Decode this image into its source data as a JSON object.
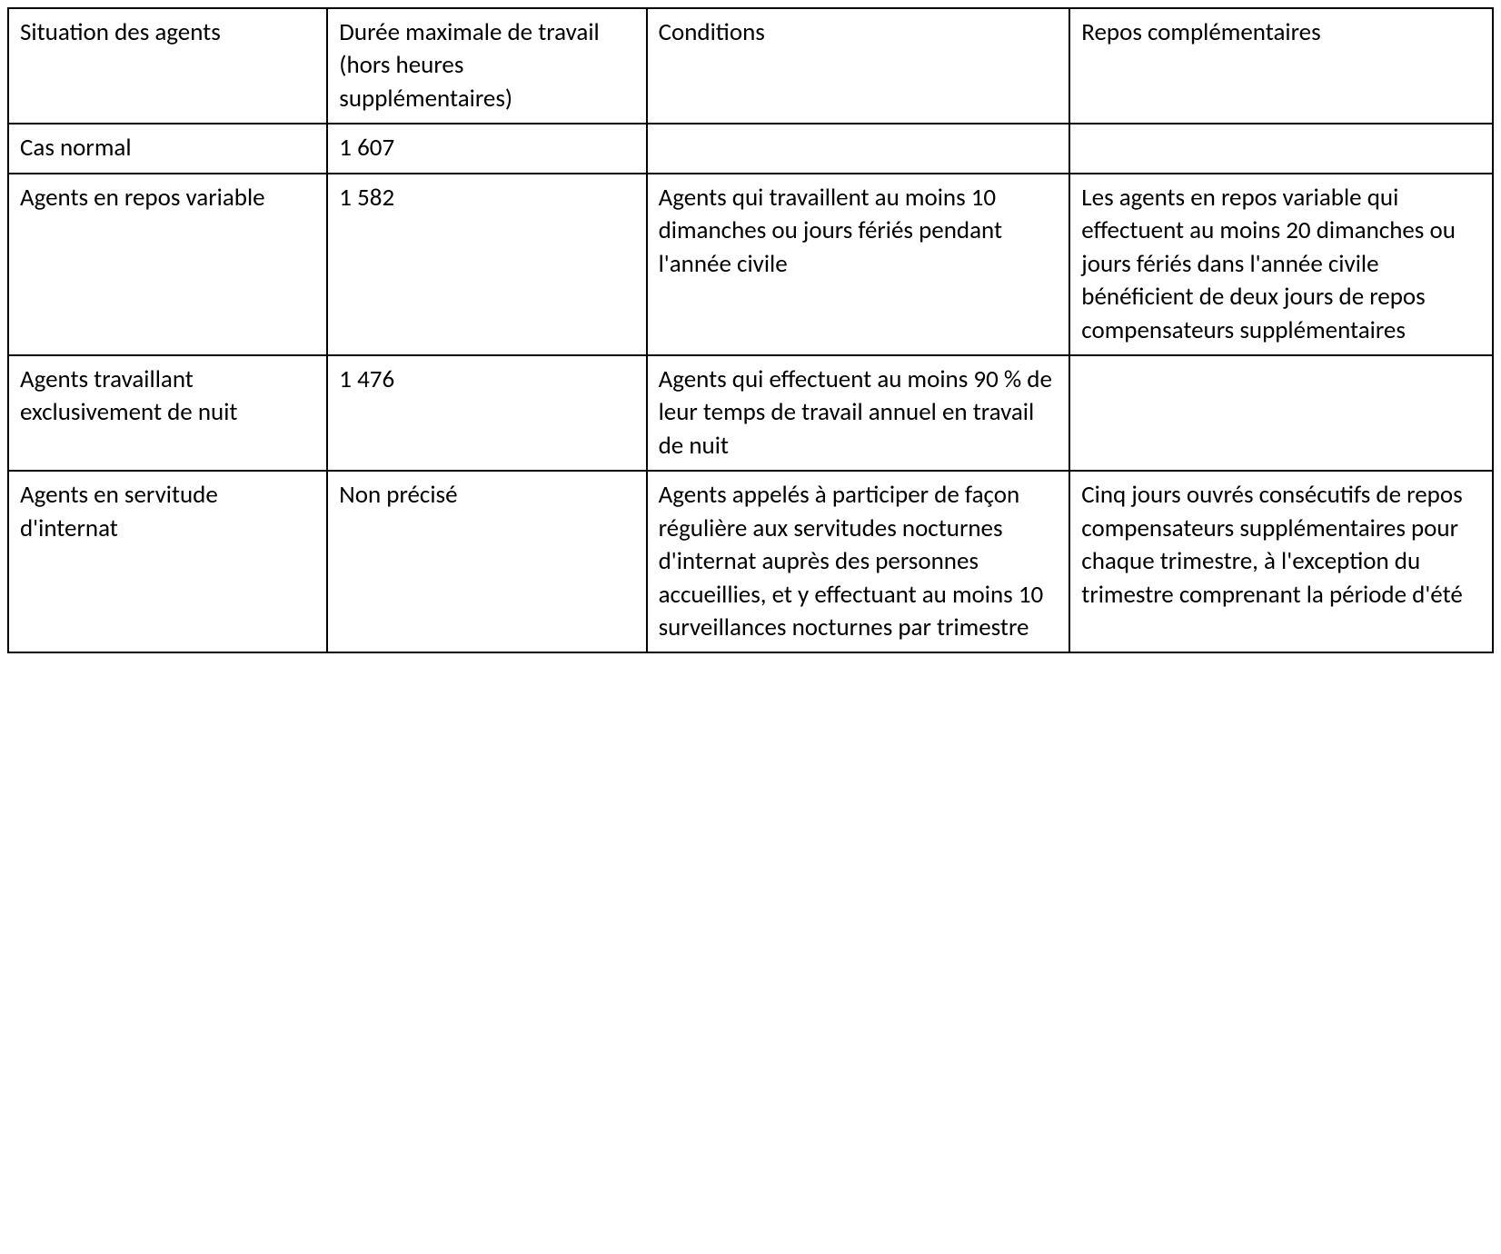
{
  "table": {
    "type": "table",
    "border_color": "#000000",
    "background_color": "#ffffff",
    "text_color": "#000000",
    "font_size_pt": 20,
    "col_widths_pct": [
      21.5,
      21.5,
      28.5,
      28.5
    ],
    "columns": [
      "Situation des agents",
      "Durée maximale de travail (hors heures supplémentaires)",
      "Conditions",
      "Repos complémentaires"
    ],
    "rows": [
      {
        "situation": "Cas normal",
        "duree": "1 607",
        "conditions": "",
        "repos": ""
      },
      {
        "situation": "Agents en repos variable",
        "duree": "1 582",
        "conditions": "Agents qui travaillent au moins 10 dimanches ou jours fériés pendant l'année civile",
        "repos": "Les agents en repos variable qui effectuent au moins 20 dimanches ou jours fériés dans l'année civile bénéficient de deux jours de repos compensateurs supplémentaires"
      },
      {
        "situation": "Agents travaillant exclusivement de nuit",
        "duree": "1 476",
        "conditions": "Agents qui effectuent au moins 90 % de leur temps de travail annuel en travail de nuit",
        "repos": ""
      },
      {
        "situation": "Agents en servitude d'internat",
        "duree": "Non précisé",
        "conditions": "Agents appelés à participer de façon régulière aux servitudes nocturnes d'internat auprès des personnes accueillies, et y effectuant au moins 10 surveillances nocturnes par trimestre",
        "repos": "Cinq jours ouvrés consécutifs de repos compensateurs supplémentaires pour chaque trimestre, à l'exception du trimestre comprenant la période d'été"
      }
    ]
  }
}
